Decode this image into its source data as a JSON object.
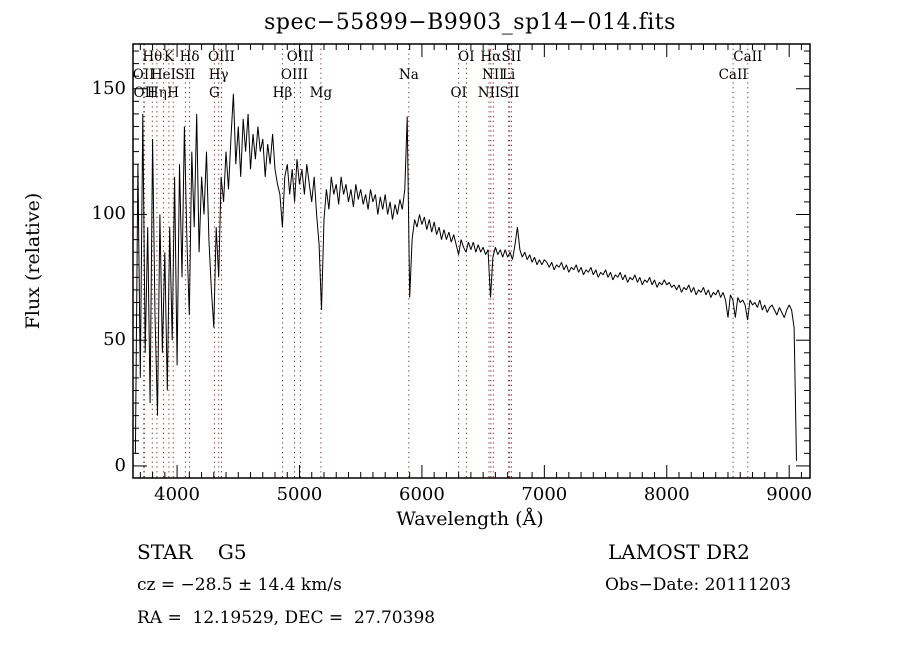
{
  "title": "spec−55899−B9903_sp14−014.fits",
  "info": {
    "class_label": "STAR    G5",
    "survey": "LAMOST DR2",
    "cz": "cz = −28.5 ± 14.4 km/s",
    "obs_date": "Obs−Date: 20111203",
    "coords": "RA =  12.19529, DEC =  27.70398"
  },
  "colors": {
    "spectrum": "#000000",
    "spectral_line_marker": "#8b2222",
    "frame": "#000000",
    "background": "#ffffff"
  },
  "chart_data": {
    "type": "line",
    "title": "spec−55899−B9903_sp14−014.fits",
    "xlabel": "Wavelength (Å)",
    "ylabel": "Flux (relative)",
    "xlim": [
      3640,
      9170
    ],
    "ylim": [
      -4.8,
      167.8
    ],
    "x_ticks_major": [
      4000,
      5000,
      6000,
      7000,
      8000,
      9000
    ],
    "x_minor_step": 100,
    "y_ticks_major": [
      0,
      50,
      100,
      150
    ],
    "y_minor_step": 5,
    "grid": false,
    "legend": "none",
    "spectral_lines": [
      {
        "wavelength": 3727,
        "label": "OII",
        "row": 2
      },
      {
        "wavelength": 3733,
        "label": "OII",
        "row": 3
      },
      {
        "wavelength": 3798,
        "label": "Hθ",
        "row": 1
      },
      {
        "wavelength": 3835,
        "label": "Hη",
        "row": 3
      },
      {
        "wavelength": 3889,
        "label": "HeI",
        "row": 2
      },
      {
        "wavelength": 3933,
        "label": "K",
        "row": 1
      },
      {
        "wavelength": 3968,
        "label": "H",
        "row": 3
      },
      {
        "wavelength": 4068,
        "label": "SII",
        "row": 2
      },
      {
        "wavelength": 4102,
        "label": "Hδ",
        "row": 1
      },
      {
        "wavelength": 4305,
        "label": "G",
        "row": 3
      },
      {
        "wavelength": 4340,
        "label": "Hγ",
        "row": 2
      },
      {
        "wavelength": 4363,
        "label": "OIII",
        "row": 1
      },
      {
        "wavelength": 4861,
        "label": "Hβ",
        "row": 3
      },
      {
        "wavelength": 4959,
        "label": "OIII",
        "row": 2
      },
      {
        "wavelength": 5007,
        "label": "OIII",
        "row": 1
      },
      {
        "wavelength": 5175,
        "label": "Mg",
        "row": 3
      },
      {
        "wavelength": 5893,
        "label": "Na",
        "row": 2
      },
      {
        "wavelength": 6300,
        "label": "OI",
        "row": 3
      },
      {
        "wavelength": 6363,
        "label": "OI",
        "row": 1
      },
      {
        "wavelength": 6548,
        "label": "NII",
        "row": 3
      },
      {
        "wavelength": 6563,
        "label": "Hα",
        "row": 1
      },
      {
        "wavelength": 6583,
        "label": "NII",
        "row": 2
      },
      {
        "wavelength": 6708,
        "label": "Li",
        "row": 2
      },
      {
        "wavelength": 6716,
        "label": "SII",
        "row": 3
      },
      {
        "wavelength": 6731,
        "label": "SII",
        "row": 1
      },
      {
        "wavelength": 8542,
        "label": "CaII",
        "row": 2
      },
      {
        "wavelength": 8662,
        "label": "CaII",
        "row": 1
      }
    ],
    "flux_x_start": 3660,
    "flux_x_step": 20,
    "flux": [
      5,
      120,
      35,
      140,
      45,
      95,
      25,
      130,
      60,
      20,
      100,
      45,
      85,
      30,
      95,
      50,
      115,
      40,
      120,
      75,
      135,
      90,
      60,
      125,
      95,
      140,
      85,
      115,
      100,
      125,
      90,
      70,
      55,
      95,
      75,
      115,
      105,
      125,
      110,
      130,
      148,
      120,
      135,
      115,
      138,
      125,
      140,
      118,
      132,
      122,
      135,
      125,
      130,
      115,
      128,
      120,
      132,
      118,
      112,
      108,
      95,
      115,
      120,
      108,
      118,
      105,
      122,
      112,
      118,
      108,
      120,
      112,
      105,
      115,
      100,
      88,
      62,
      98,
      110,
      102,
      115,
      108,
      112,
      104,
      115,
      108,
      112,
      105,
      110,
      103,
      112,
      106,
      110,
      104,
      108,
      102,
      110,
      105,
      108,
      100,
      107,
      102,
      108,
      100,
      105,
      98,
      104,
      100,
      106,
      102,
      110,
      139,
      67,
      90,
      98,
      95,
      100,
      96,
      99,
      94,
      98,
      93,
      97,
      92,
      95,
      90,
      94,
      90,
      93,
      89,
      92,
      88,
      84,
      90,
      87,
      85,
      89,
      86,
      89,
      85,
      88,
      85,
      87,
      84,
      86,
      67,
      83,
      87,
      84,
      86,
      83,
      86,
      83,
      85,
      82,
      88,
      95,
      86,
      83,
      85,
      82,
      84,
      81,
      83,
      80,
      82,
      80,
      82,
      81,
      79,
      81,
      78,
      80,
      79,
      81,
      78,
      80,
      77,
      79,
      78,
      80,
      77,
      79,
      76,
      78,
      77,
      79,
      76,
      78,
      75,
      77,
      76,
      78,
      75,
      77,
      74,
      76,
      75,
      77,
      74,
      76,
      73,
      75,
      74,
      76,
      73,
      75,
      72,
      74,
      73,
      75,
      72,
      74,
      71,
      73,
      72,
      74,
      72,
      73,
      71,
      72,
      70,
      72,
      69,
      71,
      70,
      72,
      69,
      71,
      68,
      70,
      69,
      71,
      68,
      70,
      67,
      69,
      68,
      70,
      67,
      69,
      66,
      59,
      68,
      66,
      59,
      67,
      65,
      66,
      64,
      58,
      66,
      64,
      65,
      63,
      66,
      62,
      64,
      61,
      63,
      64,
      62,
      60,
      63,
      61,
      59,
      62,
      64,
      62,
      55,
      2
    ]
  }
}
